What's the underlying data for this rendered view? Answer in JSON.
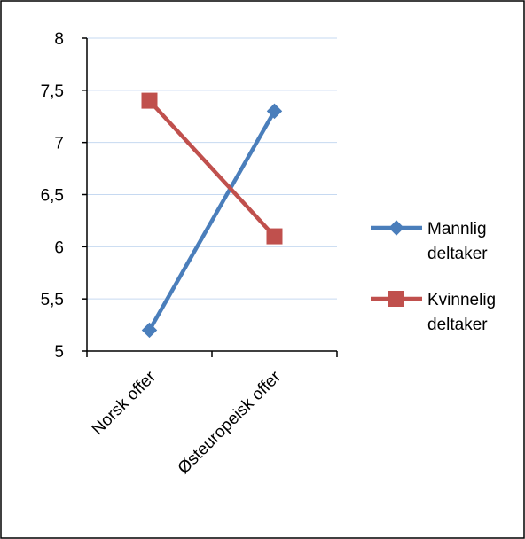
{
  "chart_data": {
    "type": "line",
    "categories": [
      "Norsk offer",
      "Østeuropeisk offer"
    ],
    "series": [
      {
        "name": "Mannlig deltaker",
        "values": [
          5.2,
          7.3
        ],
        "color": "#4a7ebb",
        "marker": "diamond"
      },
      {
        "name": "Kvinnelig deltaker",
        "values": [
          7.4,
          6.1
        ],
        "color": "#c0504d",
        "marker": "square"
      }
    ],
    "title": "",
    "xlabel": "",
    "ylabel": "",
    "ylim": [
      5,
      8
    ],
    "yticks": [
      "5",
      "5,5",
      "6",
      "6,5",
      "7",
      "7,5",
      "8"
    ],
    "grid": true,
    "legend": "right",
    "legend_lines": [
      [
        "Mannlig",
        "deltaker"
      ],
      [
        "Kvinnelig",
        "deltaker"
      ]
    ]
  }
}
